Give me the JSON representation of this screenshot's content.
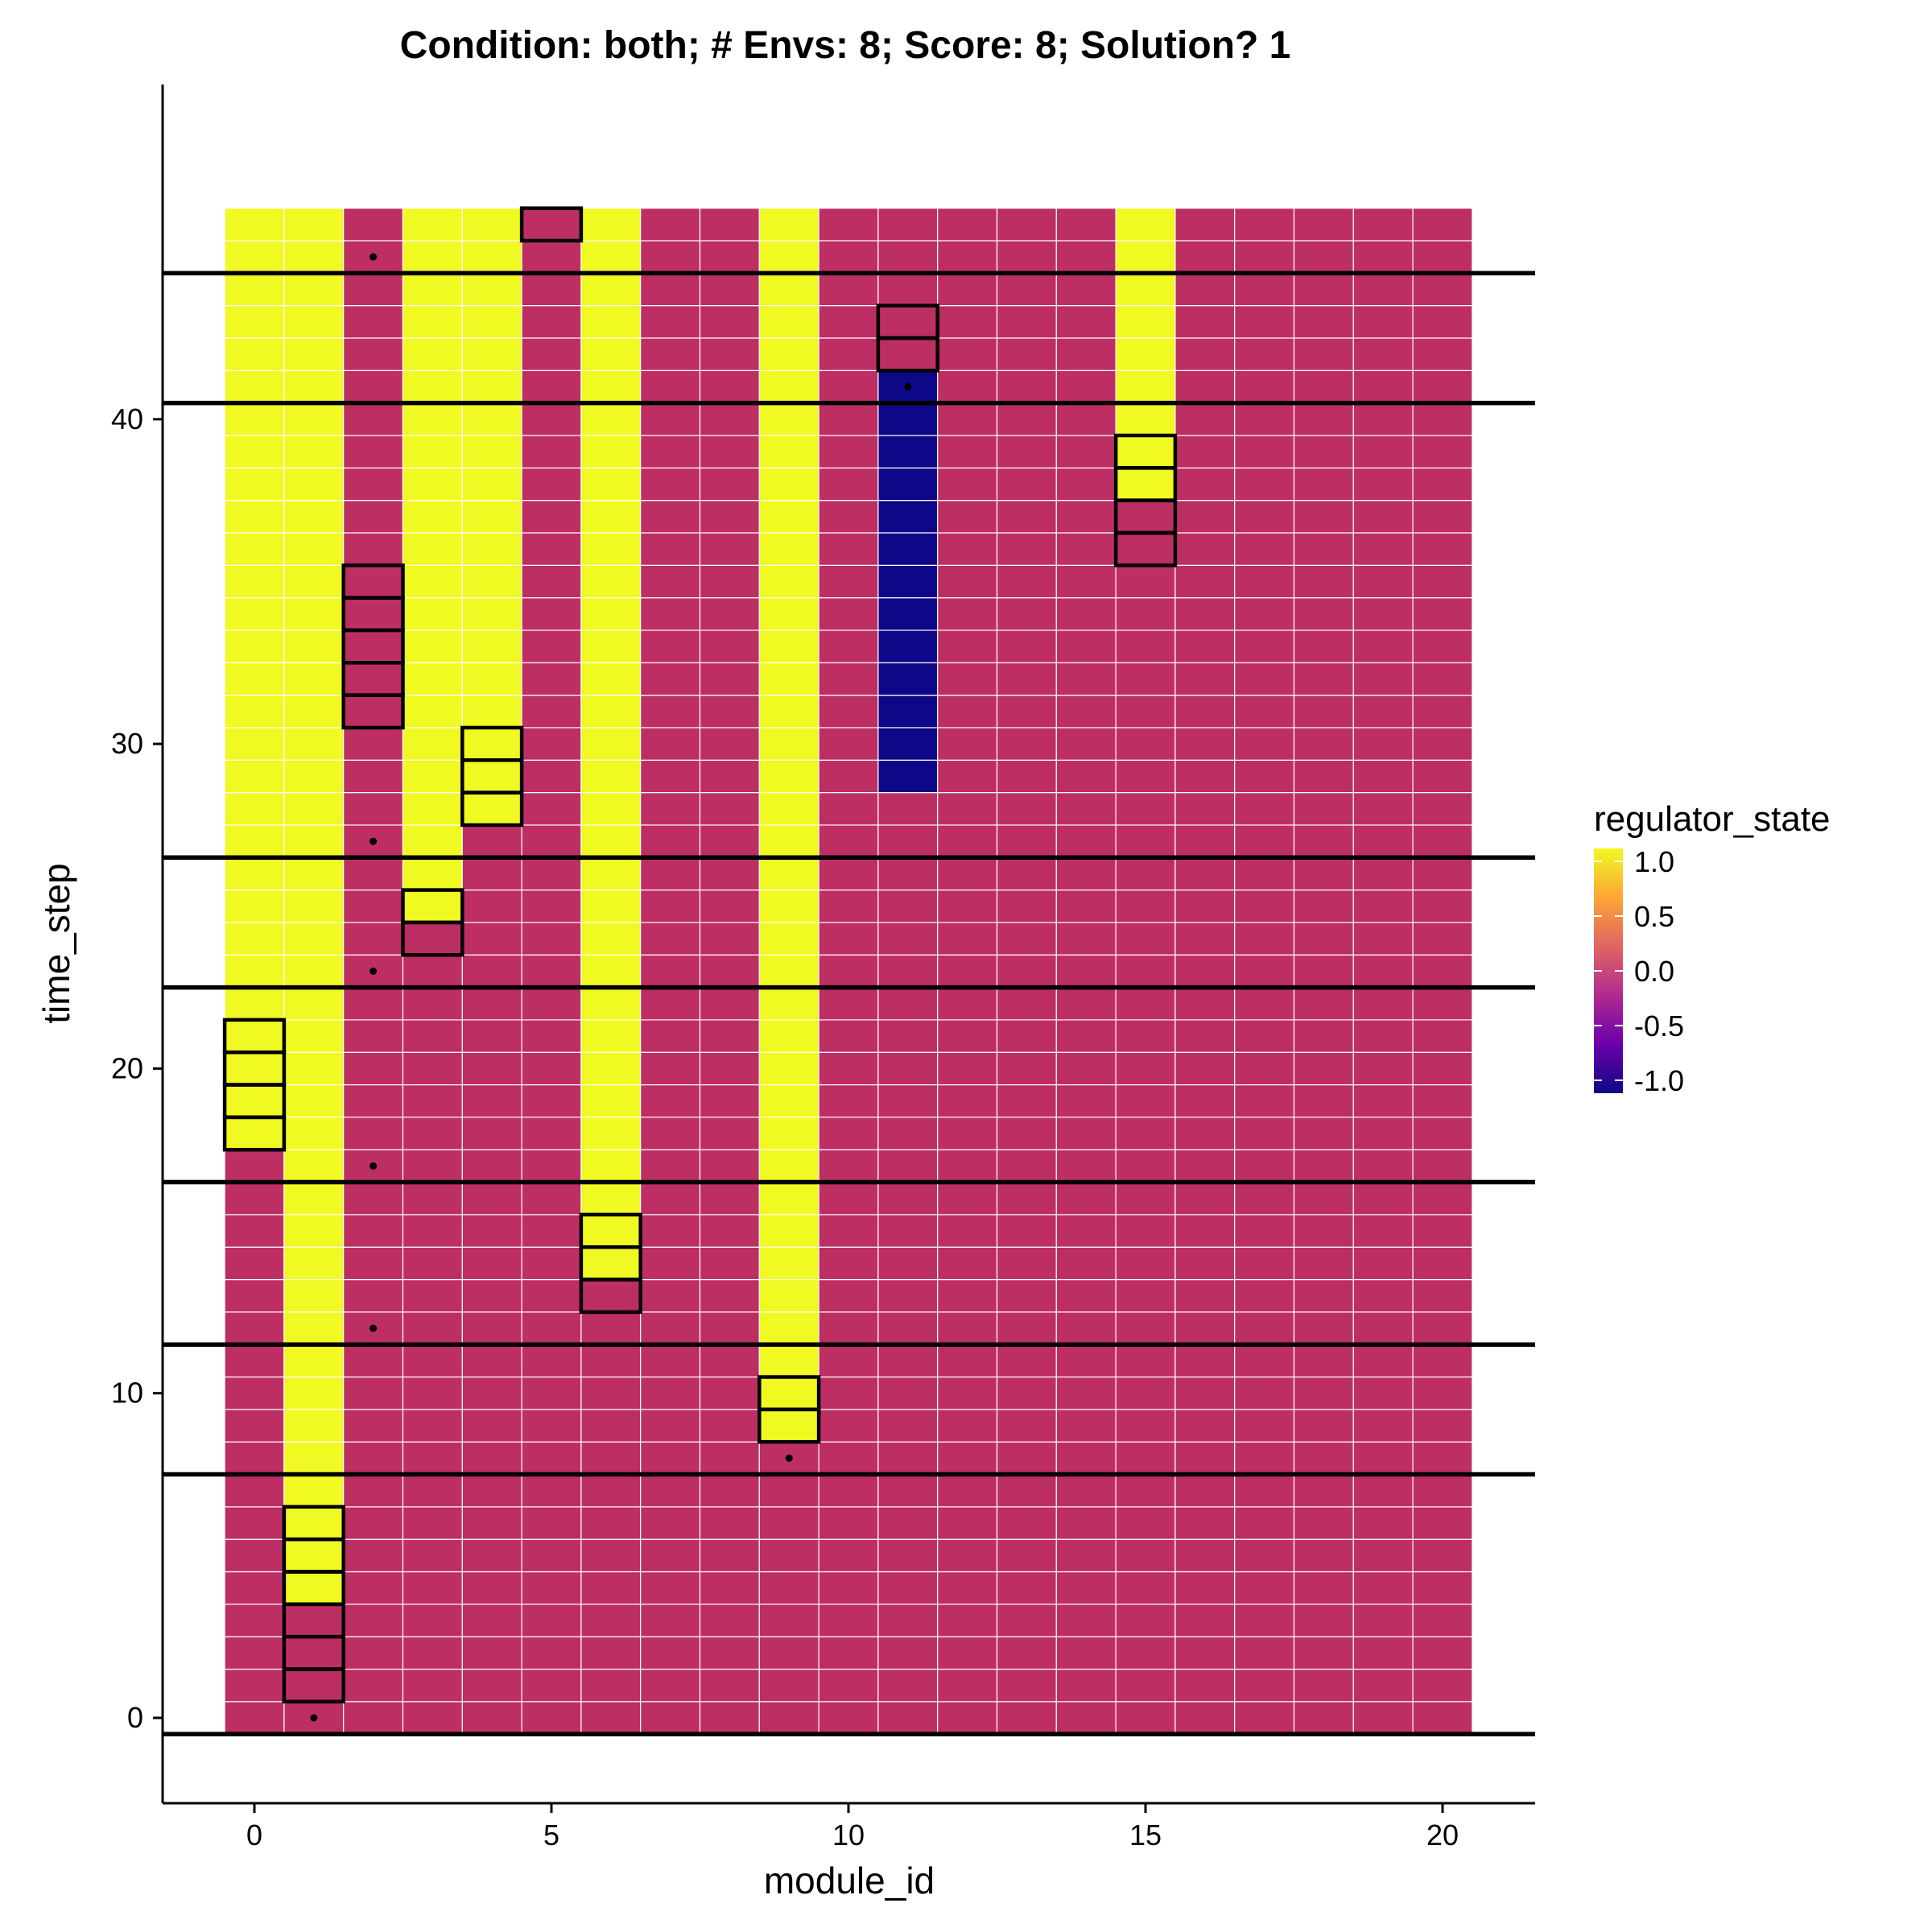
{
  "chart_data": {
    "type": "heatmap",
    "title": "Condition: both; # Envs: 8; Score: 8; Solution? 1",
    "xlabel": "module_id",
    "ylabel": "time_step",
    "x_ticks": [
      0,
      5,
      10,
      15,
      20
    ],
    "y_ticks": [
      0,
      10,
      20,
      30,
      40
    ],
    "xlim": [
      -1.5,
      21.5
    ],
    "ylim": [
      -2.8,
      49.2
    ],
    "modules": 21,
    "time_steps": 47,
    "active_spans": [
      {
        "module": 0,
        "from": 18,
        "to": 46
      },
      {
        "module": 1,
        "from": 4,
        "to": 46
      },
      {
        "module": 3,
        "from": 25,
        "to": 46
      },
      {
        "module": 4,
        "from": 28,
        "to": 46
      },
      {
        "module": 6,
        "from": 14,
        "to": 46
      },
      {
        "module": 9,
        "from": 9,
        "to": 46
      },
      {
        "module": 15,
        "from": 38,
        "to": 46
      }
    ],
    "repressed_spans": [
      {
        "module": 11,
        "from": 29,
        "to": 41
      }
    ],
    "highlighted_cells": [
      {
        "module": 1,
        "from": 1,
        "to": 6
      },
      {
        "module": 6,
        "from": 13,
        "to": 15
      },
      {
        "module": 9,
        "from": 9,
        "to": 10
      },
      {
        "module": 0,
        "from": 18,
        "to": 21
      },
      {
        "module": 3,
        "from": 24,
        "to": 25
      },
      {
        "module": 4,
        "from": 28,
        "to": 30
      },
      {
        "module": 2,
        "from": 31,
        "to": 35
      },
      {
        "module": 15,
        "from": 36,
        "to": 39
      },
      {
        "module": 11,
        "from": 42,
        "to": 43
      },
      {
        "module": 5,
        "from": 46,
        "to": 46
      }
    ],
    "env_change_lines": [
      -0.5,
      7.5,
      11.5,
      16.5,
      22.5,
      26.5,
      40.5,
      44.5
    ],
    "points": [
      {
        "x": 1,
        "y": 0
      },
      {
        "x": 9,
        "y": 8
      },
      {
        "x": 2,
        "y": 12
      },
      {
        "x": 2,
        "y": 17
      },
      {
        "x": 2,
        "y": 23
      },
      {
        "x": 2,
        "y": 27
      },
      {
        "x": 11,
        "y": 41
      },
      {
        "x": 2,
        "y": 45
      }
    ],
    "legend": {
      "title": "regulator_state",
      "ticks": [
        "1.0",
        "0.5",
        "0.0",
        "-0.5",
        "-1.0"
      ],
      "position": "right"
    },
    "colors": {
      "active": "#f0f921",
      "neutral": "#bd2e63",
      "repressed": "#0d0887",
      "gradient": [
        "#f0f921",
        "#fca636",
        "#e16462",
        "#b12a90",
        "#6a00a8",
        "#0d0887"
      ]
    }
  }
}
